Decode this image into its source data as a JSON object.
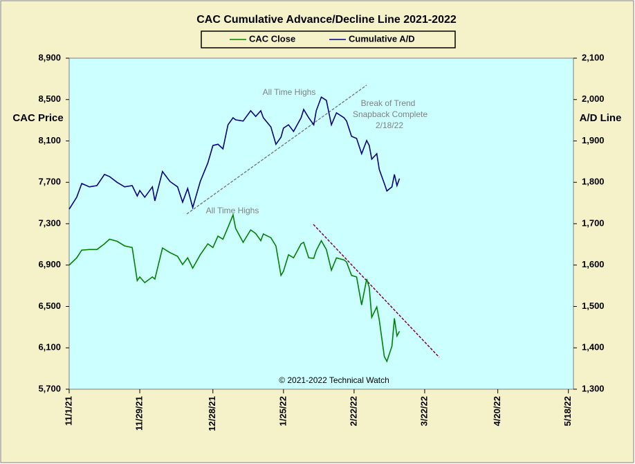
{
  "chart_data": {
    "type": "line",
    "title": "CAC Cumulative  Advance/Decline Line 2021-2022",
    "ylabel": "CAC Price",
    "y2label": "A/D Line",
    "annotations": [
      "All Time Highs",
      "All Time Highs",
      "Break of Trend",
      "Snapback Complete",
      "2/18/22",
      "© 2021-2022  Technical Watch"
    ],
    "x": [
      "2021-11-01",
      "2021-11-04",
      "2021-11-06",
      "2021-11-09",
      "2021-11-12",
      "2021-11-15",
      "2021-11-17",
      "2021-11-20",
      "2021-11-23",
      "2021-11-26",
      "2021-11-28",
      "2021-11-29",
      "2021-12-01",
      "2021-12-04",
      "2021-12-05",
      "2021-12-08",
      "2021-12-11",
      "2021-12-14",
      "2021-12-16",
      "2021-12-18",
      "2021-12-20",
      "2021-12-23",
      "2021-12-26",
      "2021-12-28",
      "2021-12-30",
      "2022-01-01",
      "2022-01-03",
      "2022-01-05",
      "2022-01-06",
      "2022-01-09",
      "2022-01-12",
      "2022-01-14",
      "2022-01-16",
      "2022-01-17",
      "2022-01-20",
      "2022-01-22",
      "2022-01-24",
      "2022-01-25",
      "2022-01-27",
      "2022-01-29",
      "2022-02-01",
      "2022-02-02",
      "2022-02-04",
      "2022-02-06",
      "2022-02-07",
      "2022-02-09",
      "2022-02-11",
      "2022-02-13",
      "2022-02-15",
      "2022-02-18",
      "2022-02-19",
      "2022-02-21",
      "2022-02-23",
      "2022-02-25",
      "2022-02-27",
      "2022-02-28",
      "2022-03-01",
      "2022-03-03",
      "2022-03-04",
      "2022-03-06",
      "2022-03-07",
      "2022-03-09",
      "2022-03-10",
      "2022-03-11",
      "2022-03-12"
    ],
    "series": [
      {
        "name": "CAC Close",
        "color": "#008000",
        "axis": "y",
        "values": [
          6900,
          6970,
          7045,
          7050,
          7050,
          7105,
          7150,
          7130,
          7085,
          7070,
          6750,
          6785,
          6730,
          6785,
          6765,
          7065,
          7020,
          6985,
          6905,
          6970,
          6870,
          7000,
          7105,
          7070,
          7180,
          7150,
          7265,
          7385,
          7255,
          7120,
          7240,
          7205,
          7135,
          7200,
          7165,
          7085,
          6800,
          6840,
          7000,
          6970,
          7105,
          7120,
          6970,
          6965,
          7040,
          7135,
          7050,
          6850,
          6970,
          6950,
          6930,
          6800,
          6785,
          6515,
          6765,
          6685,
          6395,
          6495,
          6370,
          6015,
          5970,
          6115,
          6385,
          6215,
          6260
        ]
      },
      {
        "name": "Cumulative A/D",
        "color": "#000080",
        "axis": "y2",
        "values": [
          1735,
          1764,
          1797,
          1789,
          1792,
          1819,
          1814,
          1800,
          1789,
          1792,
          1767,
          1780,
          1764,
          1789,
          1755,
          1826,
          1802,
          1789,
          1752,
          1785,
          1739,
          1802,
          1847,
          1889,
          1892,
          1881,
          1939,
          1956,
          1951,
          1948,
          1973,
          1959,
          1973,
          1956,
          1934,
          1892,
          1909,
          1931,
          1939,
          1923,
          1956,
          1976,
          1956,
          1939,
          1973,
          2006,
          1998,
          1939,
          1968,
          1956,
          1948,
          1911,
          1906,
          1869,
          1901,
          1889,
          1856,
          1869,
          1831,
          1797,
          1779,
          1789,
          1819,
          1792,
          1809
        ]
      }
    ],
    "xlim": [
      "2021-11-01",
      "2022-05-20"
    ],
    "xticks": [
      {
        "value": "2021-11-01",
        "label": "11/1/21"
      },
      {
        "value": "2021-11-29",
        "label": "11/29/21"
      },
      {
        "value": "2021-12-28",
        "label": "12/28/21"
      },
      {
        "value": "2022-01-25",
        "label": "1/25/22"
      },
      {
        "value": "2022-02-22",
        "label": "2/22/22"
      },
      {
        "value": "2022-03-22",
        "label": "3/22/22"
      },
      {
        "value": "2022-04-20",
        "label": "4/20/22"
      },
      {
        "value": "2022-05-18",
        "label": "5/18/22"
      }
    ],
    "ylim": [
      5700,
      8900
    ],
    "yticks": [
      {
        "value": 5700,
        "label": "5,700"
      },
      {
        "value": 6100,
        "label": "6,100"
      },
      {
        "value": 6500,
        "label": "6,500"
      },
      {
        "value": 6900,
        "label": "6,900"
      },
      {
        "value": 7300,
        "label": "7,300"
      },
      {
        "value": 7700,
        "label": "7,700"
      },
      {
        "value": 8100,
        "label": "8,100"
      },
      {
        "value": 8500,
        "label": "8,500"
      },
      {
        "value": 8900,
        "label": "8,900"
      }
    ],
    "y2lim": [
      1300,
      2100
    ],
    "y2ticks": [
      {
        "value": 1300,
        "label": "1,300"
      },
      {
        "value": 1400,
        "label": "1,400"
      },
      {
        "value": 1500,
        "label": "1,500"
      },
      {
        "value": 1600,
        "label": "1,600"
      },
      {
        "value": 1700,
        "label": "1,700"
      },
      {
        "value": 1800,
        "label": "1,800"
      },
      {
        "value": 1900,
        "label": "1,900"
      },
      {
        "value": 2000,
        "label": "2,000"
      },
      {
        "value": 2100,
        "label": "2,100"
      }
    ],
    "grid": false
  }
}
